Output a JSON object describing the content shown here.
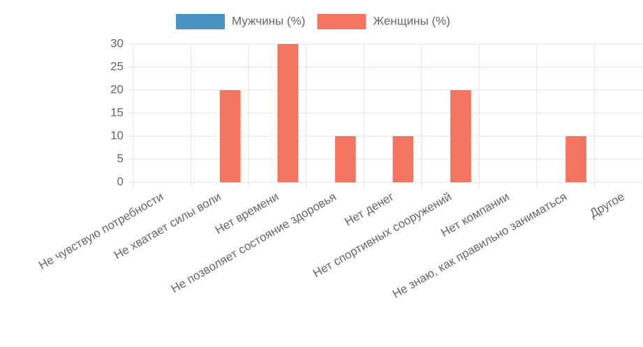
{
  "chart_data": {
    "type": "bar",
    "categories": [
      "Не чувствую потребности",
      "Не хватает силы воли",
      "Нет времени",
      "Не позволяет состояние здоровья",
      "Нет денег",
      "Нет спортивных сооружений",
      "Нет компании",
      "Не знаю, как правильно заниматься",
      "Другое"
    ],
    "series": [
      {
        "name": "Мужчины (%)",
        "color": "#4a93c4",
        "values": [
          0,
          0,
          0,
          0,
          0,
          0,
          0,
          0,
          0
        ]
      },
      {
        "name": "Женщины (%)",
        "color": "#f47462",
        "values": [
          0,
          20,
          30,
          10,
          10,
          20,
          0,
          10,
          0
        ]
      }
    ],
    "ylim": [
      0,
      30
    ],
    "yticks": [
      0,
      5,
      10,
      15,
      20,
      25,
      30
    ],
    "grid": true,
    "legend": "top"
  }
}
